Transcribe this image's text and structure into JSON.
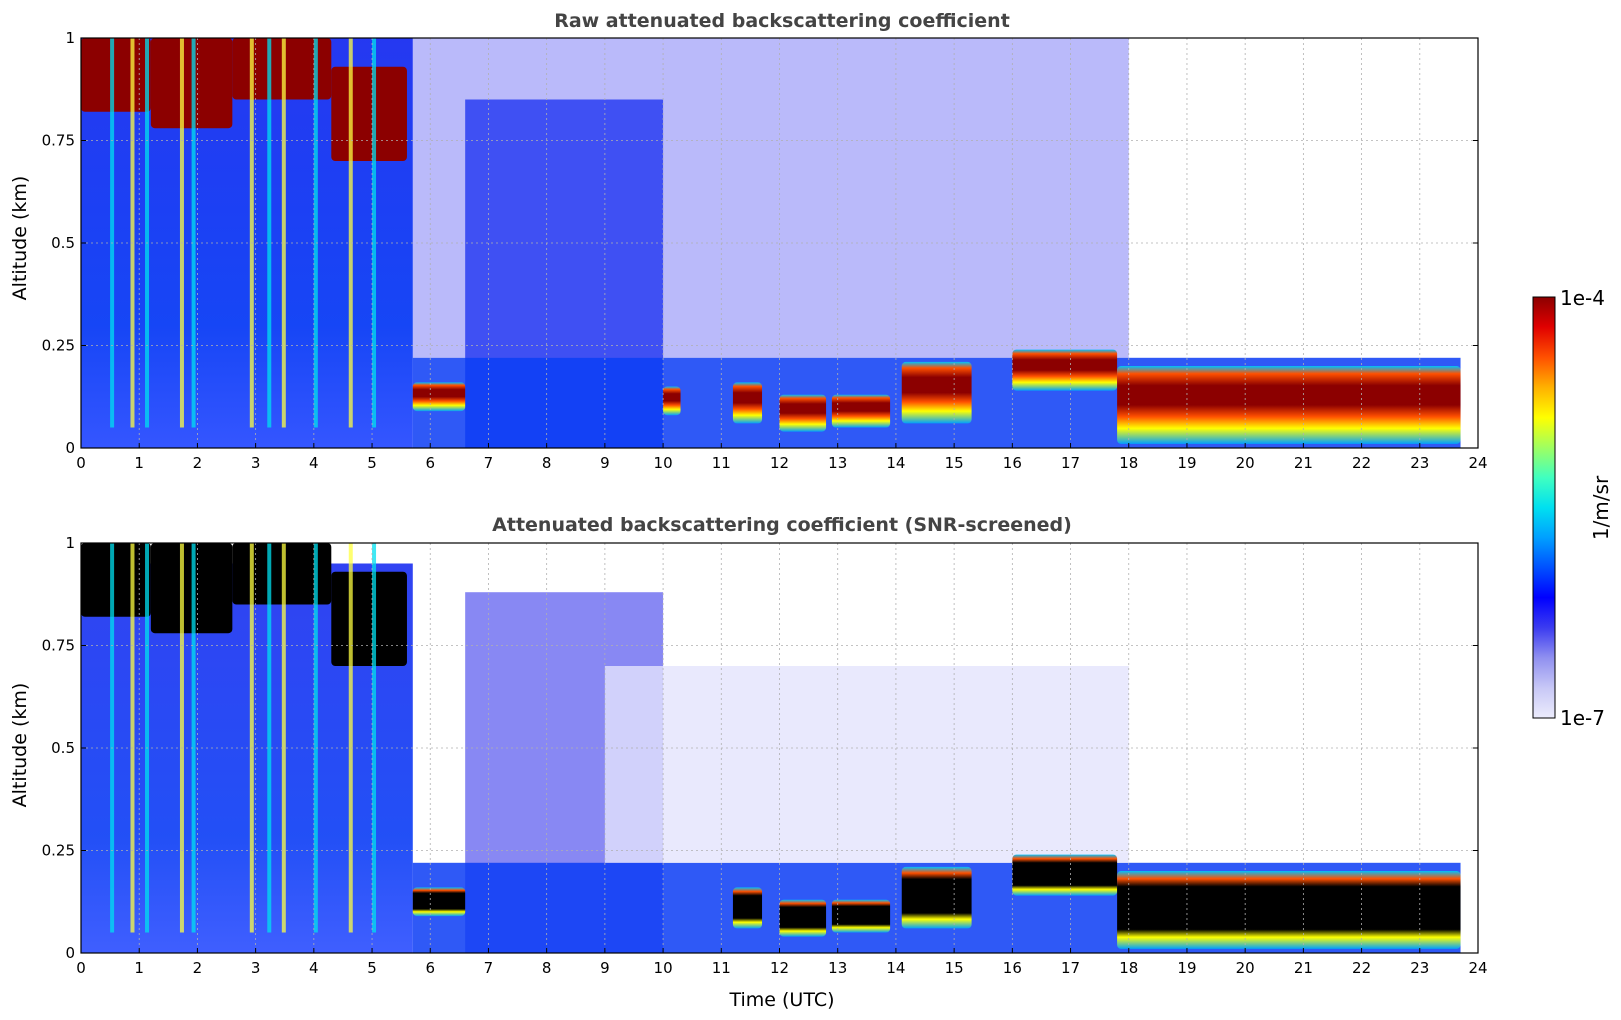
{
  "chart_data": [
    {
      "type": "heatmap",
      "title": "Raw attenuated backscattering coefficient",
      "ylabel": "Altitude (km)",
      "xlabel": "",
      "xlim": [
        0,
        24
      ],
      "ylim": [
        0,
        1
      ],
      "x_ticks": [
        "0",
        "1",
        "2",
        "3",
        "4",
        "5",
        "6",
        "7",
        "8",
        "9",
        "10",
        "11",
        "12",
        "13",
        "14",
        "15",
        "16",
        "17",
        "18",
        "19",
        "20",
        "21",
        "22",
        "23",
        "24"
      ],
      "y_ticks": [
        "0",
        "0.25",
        "0.5",
        "0.75",
        "1"
      ],
      "grid": true,
      "layers": [
        {
          "name": "upper cloud",
          "segments": [
            [
              0,
              1.2,
              0.82,
              1.0
            ],
            [
              1.2,
              2.6,
              0.78,
              1.0
            ],
            [
              2.6,
              4.3,
              0.85,
              1.0
            ],
            [
              4.3,
              5.6,
              0.7,
              0.93
            ]
          ]
        },
        {
          "name": "boundary layer top",
          "segments": [
            [
              5.7,
              6.6,
              0.09,
              0.16
            ],
            [
              10.0,
              10.3,
              0.08,
              0.15
            ],
            [
              11.2,
              11.7,
              0.06,
              0.16
            ],
            [
              12.0,
              12.8,
              0.04,
              0.13
            ],
            [
              12.9,
              13.9,
              0.05,
              0.13
            ],
            [
              14.1,
              15.3,
              0.06,
              0.21
            ],
            [
              16.0,
              17.8,
              0.14,
              0.24
            ],
            [
              17.8,
              23.7,
              0.01,
              0.2
            ]
          ]
        }
      ]
    },
    {
      "type": "heatmap",
      "title": "Attenuated backscattering coefficient (SNR-screened)",
      "ylabel": "Altitude (km)",
      "xlabel": "Time (UTC)",
      "xlim": [
        0,
        24
      ],
      "ylim": [
        0,
        1
      ],
      "x_ticks": [
        "0",
        "1",
        "2",
        "3",
        "4",
        "5",
        "6",
        "7",
        "8",
        "9",
        "10",
        "11",
        "12",
        "13",
        "14",
        "15",
        "16",
        "17",
        "18",
        "19",
        "20",
        "21",
        "22",
        "23",
        "24"
      ],
      "y_ticks": [
        "0",
        "0.25",
        "0.5",
        "0.75",
        "1"
      ],
      "grid": true,
      "layers": [
        {
          "name": "saturated cloud",
          "segments": [
            [
              0,
              1.2,
              0.82,
              1.0
            ],
            [
              1.2,
              2.6,
              0.78,
              1.0
            ],
            [
              2.6,
              4.3,
              0.85,
              1.0
            ],
            [
              4.3,
              5.6,
              0.7,
              0.93
            ]
          ]
        },
        {
          "name": "saturated boundary layer",
          "segments": [
            [
              5.7,
              6.6,
              0.09,
              0.16
            ],
            [
              11.2,
              11.7,
              0.06,
              0.16
            ],
            [
              12.0,
              12.8,
              0.04,
              0.13
            ],
            [
              12.9,
              13.9,
              0.05,
              0.13
            ],
            [
              14.1,
              15.3,
              0.06,
              0.21
            ],
            [
              16.0,
              17.8,
              0.14,
              0.24
            ],
            [
              17.8,
              23.7,
              0.01,
              0.2
            ]
          ]
        }
      ]
    }
  ],
  "colorbar": {
    "max_label": "1e-4",
    "min_label": "1e-7",
    "unit_label": "1/m/sr",
    "colormap": [
      "#ececfc",
      "#c8c8f6",
      "#9090f0",
      "#3c3cf0",
      "#0000ff",
      "#0050ff",
      "#00a0ff",
      "#00e0f0",
      "#40ffc0",
      "#a0ff60",
      "#ffff00",
      "#ffb000",
      "#ff5000",
      "#e00000",
      "#8c0000"
    ]
  }
}
